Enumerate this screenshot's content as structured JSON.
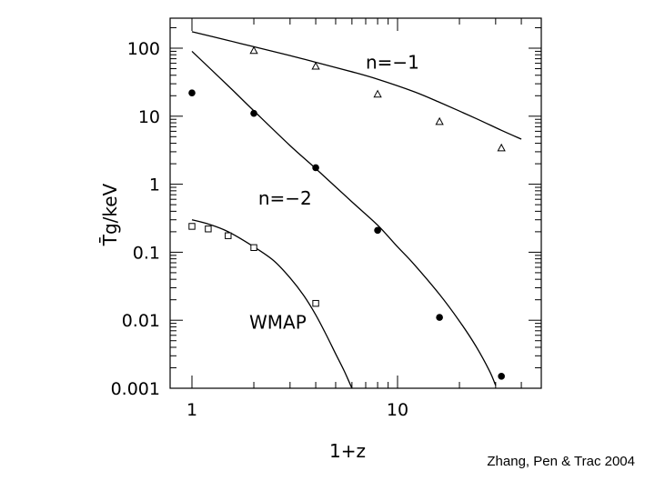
{
  "chart_data": {
    "type": "scatter",
    "xlabel": "1+z",
    "ylabel": "T̄g/keV",
    "x_scale": "log",
    "y_scale": "log",
    "xlim": [
      0.82,
      47
    ],
    "ylim": [
      0.001,
      250
    ],
    "x_ticks": [
      {
        "value": 1,
        "label": "1"
      },
      {
        "value": 10,
        "label": "10"
      }
    ],
    "y_ticks": [
      {
        "value": 0.001,
        "label": "0.001"
      },
      {
        "value": 0.01,
        "label": "0.01"
      },
      {
        "value": 0.1,
        "label": "0.1"
      },
      {
        "value": 1,
        "label": "1"
      },
      {
        "value": 10,
        "label": "10"
      },
      {
        "value": 100,
        "label": "100"
      }
    ],
    "grid": false,
    "series": [
      {
        "name": "n=−1",
        "marker": "triangle",
        "points": [
          [
            2,
            92
          ],
          [
            4,
            54
          ],
          [
            8,
            21
          ],
          [
            16,
            8.3
          ],
          [
            32,
            3.4
          ]
        ],
        "curve": [
          [
            1,
            175
          ],
          [
            1.5,
            130
          ],
          [
            2,
            105
          ],
          [
            3,
            78
          ],
          [
            4,
            62
          ],
          [
            6,
            45
          ],
          [
            8,
            35
          ],
          [
            12,
            23
          ],
          [
            16,
            16
          ],
          [
            24,
            9.3
          ],
          [
            32,
            6.2
          ],
          [
            40,
            4.6
          ]
        ]
      },
      {
        "name": "n=−2",
        "marker": "filled-circle",
        "points": [
          [
            1,
            22
          ],
          [
            2,
            11
          ],
          [
            4,
            1.75
          ],
          [
            8,
            0.21
          ],
          [
            16,
            0.011
          ],
          [
            32,
            0.0015
          ]
        ],
        "curve": [
          [
            1,
            90
          ],
          [
            1.5,
            28
          ],
          [
            2,
            12
          ],
          [
            3,
            3.7
          ],
          [
            4,
            1.7
          ],
          [
            6,
            0.55
          ],
          [
            8,
            0.25
          ],
          [
            10,
            0.12
          ],
          [
            12,
            0.067
          ],
          [
            16,
            0.024
          ],
          [
            20,
            0.0097
          ],
          [
            24,
            0.0042
          ],
          [
            28,
            0.0018
          ],
          [
            30,
            0.0011
          ]
        ]
      },
      {
        "name": "WMAP",
        "marker": "open-square",
        "points": [
          [
            1,
            0.24
          ],
          [
            1.2,
            0.22
          ],
          [
            1.5,
            0.175
          ],
          [
            2,
            0.117
          ],
          [
            4,
            0.0177
          ]
        ],
        "curve": [
          [
            1,
            0.3
          ],
          [
            1.2,
            0.26
          ],
          [
            1.5,
            0.2
          ],
          [
            2,
            0.12
          ],
          [
            2.5,
            0.075
          ],
          [
            3,
            0.042
          ],
          [
            3.5,
            0.023
          ],
          [
            4,
            0.012
          ],
          [
            4.5,
            0.0061
          ],
          [
            5,
            0.0032
          ],
          [
            5.5,
            0.0018
          ],
          [
            6,
            0.001
          ]
        ]
      }
    ],
    "annotations": [
      {
        "text": "n=−1",
        "x": 7,
        "y": 50
      },
      {
        "text": "n=−2",
        "x": 2.1,
        "y": 0.5
      },
      {
        "text": "WMAP",
        "x": 1.9,
        "y": 0.0075
      }
    ]
  },
  "credit": "Zhang, Pen & Trac 2004"
}
